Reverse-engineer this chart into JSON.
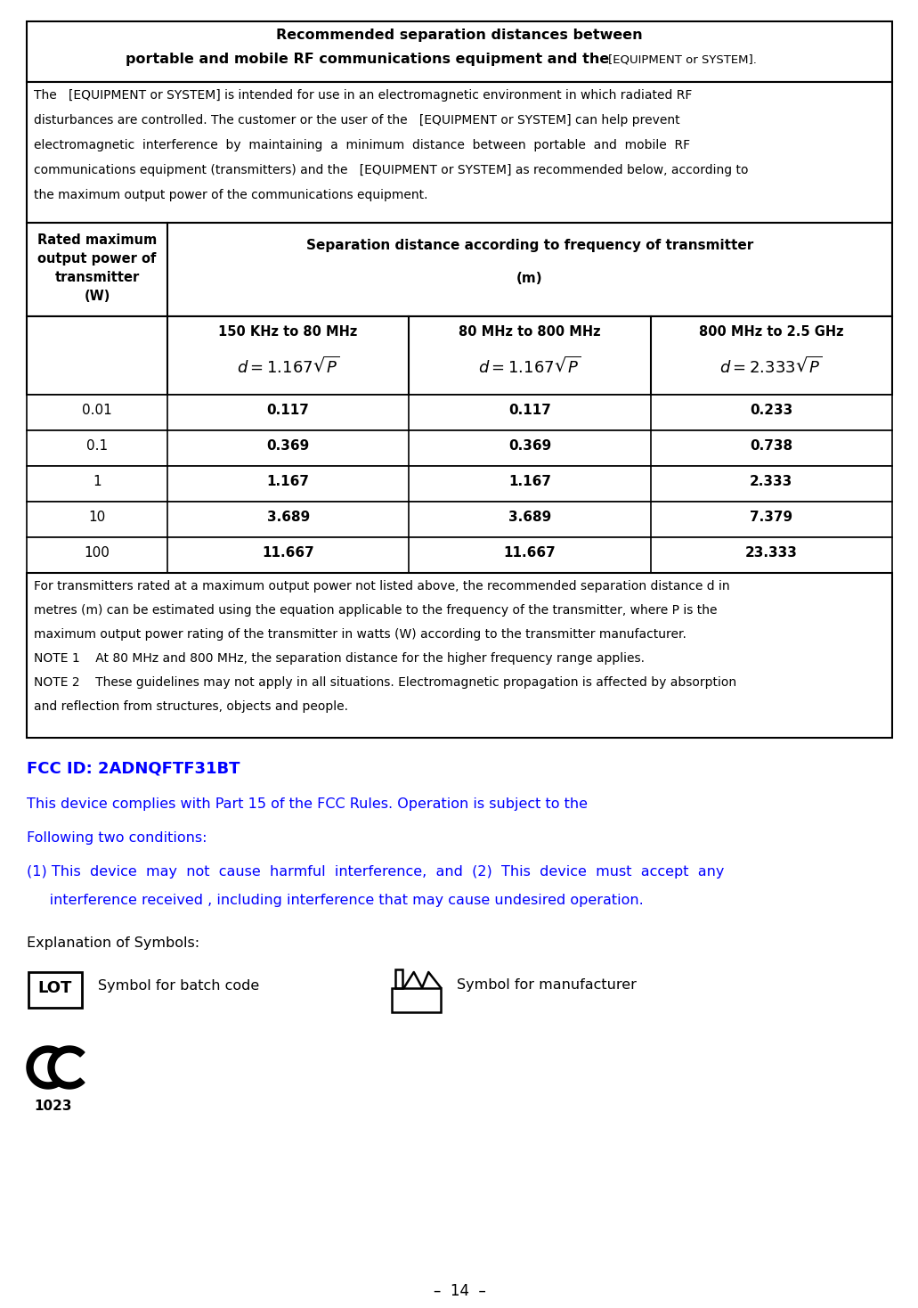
{
  "bg_color": "#ffffff",
  "title_line1": "Recommended separation distances between",
  "title_line2_bold": "portable and mobile RF communications equipment and the",
  "title_line2_small": "[EQUIPMENT or SYSTEM].",
  "intro_lines": [
    "The   [EQUIPMENT or SYSTEM] is intended for use in an electromagnetic environment in which radiated RF",
    "disturbances are controlled. The customer or the user of the   [EQUIPMENT or SYSTEM] can help prevent",
    "electromagnetic  interference  by  maintaining  a  minimum  distance  between  portable  and  mobile  RF",
    "communications equipment (transmitters) and the   [EQUIPMENT or SYSTEM] as recommended below, according to",
    "the maximum output power of the communications equipment."
  ],
  "col1_header": [
    "Rated maximum",
    "output power of",
    "transmitter",
    "(W)"
  ],
  "col_sep_header": "Separation distance according to frequency of transmitter",
  "col_sep_unit": "(m)",
  "freq_labels": [
    "150 KHz to 80 MHz",
    "80 MHz to 800 MHz",
    "800 MHz to 2.5 GHz"
  ],
  "data_rows": [
    [
      "0.01",
      "0.117",
      "0.117",
      "0.233"
    ],
    [
      "0.1",
      "0.369",
      "0.369",
      "0.738"
    ],
    [
      "1",
      "1.167",
      "1.167",
      "2.333"
    ],
    [
      "10",
      "3.689",
      "3.689",
      "7.379"
    ],
    [
      "100",
      "11.667",
      "11.667",
      "23.333"
    ]
  ],
  "footer_lines": [
    "For transmitters rated at a maximum output power not listed above, the recommended separation distance d in",
    "metres (m) can be estimated using the equation applicable to the frequency of the transmitter, where P is the",
    "maximum output power rating of the transmitter in watts (W) according to the transmitter manufacturer.",
    "NOTE 1    At 80 MHz and 800 MHz, the separation distance for the higher frequency range applies.",
    "NOTE 2    These guidelines may not apply in all situations. Electromagnetic propagation is affected by absorption",
    "and reflection from structures, objects and people."
  ],
  "fcc_id": "FCC ID: 2ADNQFTF31BT",
  "fcc_line1": "This device complies with Part 15 of the FCC Rules. Operation is subject to the",
  "fcc_line2": "Following two conditions:",
  "fcc_line3": "(1) This  device  may  not  cause  harmful  interference,  and  (2)  This  device  must  accept  any",
  "fcc_line4": "     interference received , including interference that may cause undesired operation.",
  "explanation": "Explanation of Symbols:",
  "lot_label": "LOT",
  "batch_label": "Symbol for batch code",
  "mfr_label": "Symbol for manufacturer",
  "page_num": "–  14  –",
  "blue_color": "#0000FF",
  "black_color": "#000000"
}
